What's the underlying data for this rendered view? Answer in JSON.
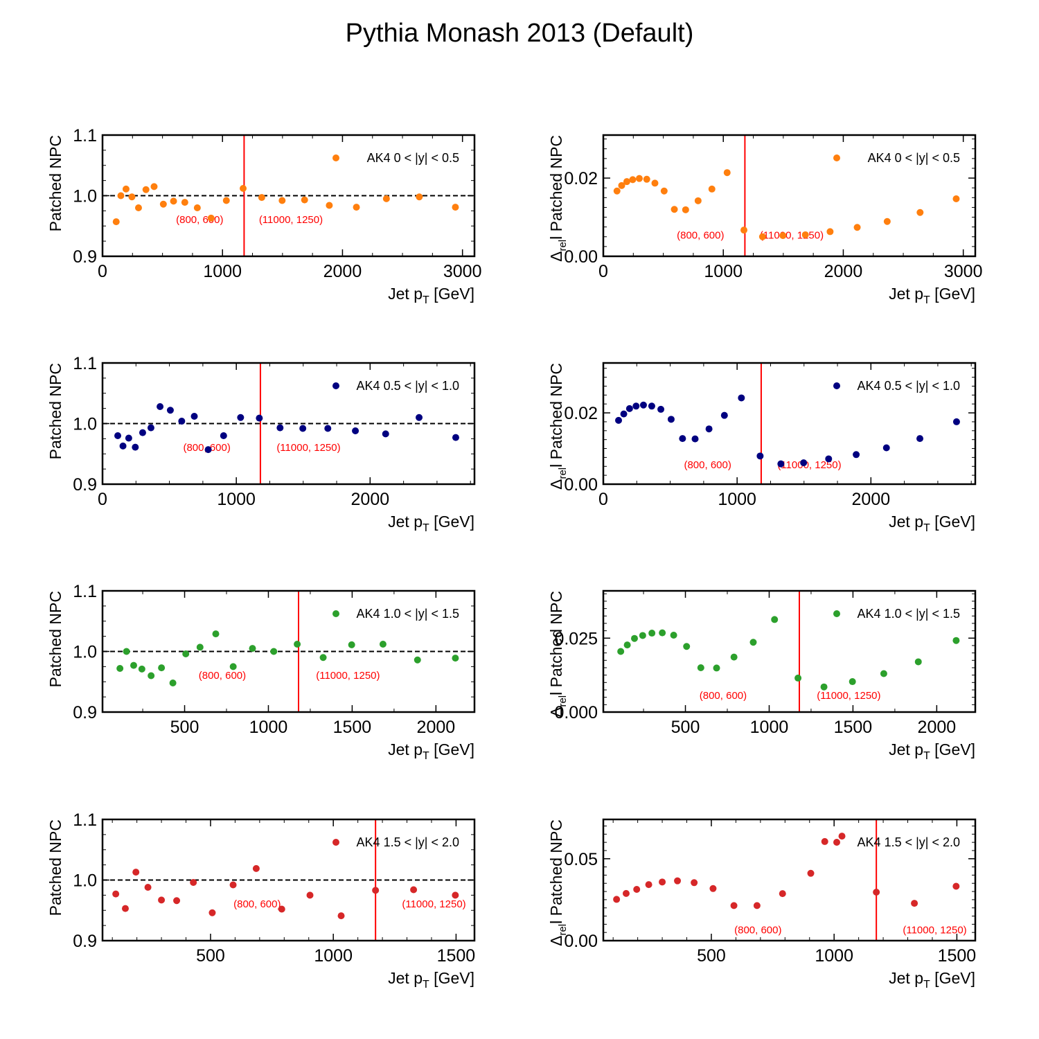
{
  "figure": {
    "title": "Pythia Monash 2013 (Default)"
  },
  "colors": {
    "orange": "#ff7f0e",
    "navy": "#000080",
    "green": "#2ca02c",
    "red": "#d62728",
    "vline": "#ff0000",
    "annot": "#ff0000"
  },
  "chart_data": [
    {
      "type": "scatter",
      "panel": "row1-left",
      "ylabel": "Patched NPC",
      "xlabel": "Jet p_T [GeV]",
      "legend": "AK4 0 < |y| < 0.5",
      "legend_loc": "top-right",
      "color": "orange",
      "xlim": [
        0,
        3100
      ],
      "ylim": [
        0.9,
        1.1
      ],
      "xticks": [
        0,
        1000,
        2000,
        3000
      ],
      "yticks": [
        0.9,
        1.0,
        1.1
      ],
      "ytick_labels": [
        "0.9",
        "1.0",
        "1.1"
      ],
      "hline": 1.0,
      "vline": 1180,
      "annotations": [
        {
          "text": "(800, 600)",
          "x": 810,
          "y": 0.955
        },
        {
          "text": "(11000, 1250)",
          "x": 1570,
          "y": 0.955
        }
      ],
      "x": [
        114,
        153,
        196,
        245,
        300,
        362,
        430,
        507,
        592,
        686,
        790,
        905,
        1032,
        1172,
        1327,
        1497,
        1684,
        1890,
        2116,
        2366,
        2640,
        2941
      ],
      "y": [
        0.957,
        1.0,
        1.011,
        0.998,
        0.98,
        1.01,
        1.015,
        0.986,
        0.991,
        0.989,
        0.98,
        0.963,
        0.992,
        1.012,
        0.997,
        0.992,
        0.993,
        0.984,
        0.981,
        0.995,
        0.998,
        0.981
      ]
    },
    {
      "type": "scatter",
      "panel": "row1-right",
      "ylabel": "Δrel Patched NPC",
      "xlabel": "Jet p_T [GeV]",
      "legend": "AK4 0 < |y| < 0.5",
      "legend_loc": "top-right",
      "color": "orange",
      "xlim": [
        0,
        3100
      ],
      "ylim": [
        0,
        0.031
      ],
      "xticks": [
        0,
        1000,
        2000,
        3000
      ],
      "yticks": [
        0.0,
        0.02
      ],
      "ytick_labels": [
        "0.00",
        "0.02"
      ],
      "vline": 1180,
      "annotations": [
        {
          "text": "(800, 600)",
          "x": 810,
          "y": 0.0045
        },
        {
          "text": "(11000, 1250)",
          "x": 1570,
          "y": 0.0045
        }
      ],
      "x": [
        114,
        153,
        196,
        245,
        300,
        362,
        430,
        507,
        592,
        686,
        790,
        905,
        1032,
        1172,
        1327,
        1497,
        1684,
        1890,
        2116,
        2366,
        2640,
        2941
      ],
      "y": [
        0.0167,
        0.0181,
        0.0191,
        0.0196,
        0.0199,
        0.0197,
        0.0187,
        0.0167,
        0.012,
        0.0119,
        0.0142,
        0.0172,
        0.0214,
        0.0067,
        0.005,
        0.0053,
        0.0055,
        0.0063,
        0.0074,
        0.0089,
        0.0112,
        0.0147
      ]
    },
    {
      "type": "scatter",
      "panel": "row2-left",
      "ylabel": "Patched NPC",
      "xlabel": "Jet p_T [GeV]",
      "legend": "AK4 0.5 < |y| < 1.0",
      "legend_loc": "top-right",
      "color": "navy",
      "xlim": [
        0,
        2780
      ],
      "ylim": [
        0.9,
        1.1
      ],
      "xticks": [
        0,
        1000,
        2000
      ],
      "yticks": [
        0.9,
        1.0,
        1.1
      ],
      "ytick_labels": [
        "0.9",
        "1.0",
        "1.1"
      ],
      "hline": 1.0,
      "vline": 1180,
      "annotations": [
        {
          "text": "(800, 600)",
          "x": 780,
          "y": 0.955
        },
        {
          "text": "(11000, 1250)",
          "x": 1540,
          "y": 0.955
        }
      ],
      "x": [
        114,
        153,
        196,
        245,
        300,
        362,
        430,
        507,
        592,
        686,
        790,
        905,
        1032,
        1172,
        1327,
        1497,
        1684,
        1890,
        2116,
        2366,
        2640
      ],
      "y": [
        0.98,
        0.963,
        0.976,
        0.961,
        0.985,
        0.993,
        1.028,
        1.022,
        1.004,
        1.012,
        0.957,
        0.98,
        1.01,
        1.009,
        0.993,
        0.992,
        0.992,
        0.988,
        0.983,
        1.01,
        0.977
      ]
    },
    {
      "type": "scatter",
      "panel": "row2-right",
      "ylabel": "Δrel Patched NPC",
      "xlabel": "Jet p_T [GeV]",
      "legend": "AK4 0.5 < |y| < 1.0",
      "legend_loc": "top-right",
      "color": "navy",
      "xlim": [
        0,
        2780
      ],
      "ylim": [
        0,
        0.034
      ],
      "xticks": [
        0,
        1000,
        2000
      ],
      "yticks": [
        0.0,
        0.02
      ],
      "ytick_labels": [
        "0.00",
        "0.02"
      ],
      "vline": 1180,
      "annotations": [
        {
          "text": "(800, 600)",
          "x": 780,
          "y": 0.0045
        },
        {
          "text": "(11000, 1250)",
          "x": 1540,
          "y": 0.0045
        }
      ],
      "x": [
        114,
        153,
        196,
        245,
        300,
        362,
        430,
        507,
        592,
        686,
        790,
        905,
        1032,
        1172,
        1327,
        1497,
        1684,
        1890,
        2116,
        2366,
        2640
      ],
      "y": [
        0.0179,
        0.0197,
        0.0212,
        0.0219,
        0.0222,
        0.0219,
        0.021,
        0.0182,
        0.0128,
        0.0127,
        0.0155,
        0.0193,
        0.0242,
        0.0079,
        0.0057,
        0.006,
        0.0071,
        0.0083,
        0.0102,
        0.0128,
        0.0175
      ]
    },
    {
      "type": "scatter",
      "panel": "row3-left",
      "ylabel": "Patched NPC",
      "xlabel": "Jet p_T [GeV]",
      "legend": "AK4 1.0 < |y| < 1.5",
      "legend_loc": "top-right",
      "color": "green",
      "xlim": [
        10,
        2230
      ],
      "ylim": [
        0.9,
        1.1
      ],
      "xticks": [
        500,
        1000,
        1500,
        2000
      ],
      "yticks": [
        0.9,
        1.0,
        1.1
      ],
      "ytick_labels": [
        "0.9",
        "1.0",
        "1.1"
      ],
      "hline": 1.0,
      "vline": 1180,
      "annotations": [
        {
          "text": "(800, 600)",
          "x": 725,
          "y": 0.955
        },
        {
          "text": "(11000, 1250)",
          "x": 1475,
          "y": 0.955
        }
      ],
      "x": [
        114,
        153,
        196,
        245,
        300,
        362,
        430,
        507,
        592,
        686,
        790,
        905,
        1032,
        1172,
        1327,
        1497,
        1684,
        1890,
        2116
      ],
      "y": [
        0.972,
        1.0,
        0.977,
        0.971,
        0.96,
        0.973,
        0.948,
        0.996,
        1.007,
        1.029,
        0.975,
        1.005,
        1.0,
        1.012,
        0.99,
        1.011,
        1.012,
        0.986,
        0.989
      ]
    },
    {
      "type": "scatter",
      "panel": "row3-right",
      "ylabel": "Δrel Patched NPC",
      "xlabel": "Jet p_T [GeV]",
      "legend": "AK4 1.0 < |y| < 1.5",
      "legend_loc": "top-right",
      "color": "green",
      "xlim": [
        10,
        2230
      ],
      "ylim": [
        0,
        0.041
      ],
      "xticks": [
        500,
        1000,
        1500,
        2000
      ],
      "yticks": [
        0.0,
        0.025
      ],
      "ytick_labels": [
        "0.000",
        "0.025"
      ],
      "vline": 1180,
      "annotations": [
        {
          "text": "(800, 600)",
          "x": 725,
          "y": 0.0045
        },
        {
          "text": "(11000, 1250)",
          "x": 1475,
          "y": 0.0045
        }
      ],
      "x": [
        114,
        153,
        196,
        245,
        300,
        362,
        430,
        507,
        592,
        686,
        790,
        905,
        1032,
        1172,
        1327,
        1497,
        1684,
        1890,
        2116
      ],
      "y": [
        0.0205,
        0.0227,
        0.0249,
        0.0259,
        0.0267,
        0.0268,
        0.026,
        0.0222,
        0.015,
        0.0149,
        0.0186,
        0.0236,
        0.0313,
        0.0115,
        0.0085,
        0.0103,
        0.013,
        0.017,
        0.0242
      ]
    },
    {
      "type": "scatter",
      "panel": "row4-left",
      "ylabel": "Patched NPC",
      "xlabel": "Jet p_T [GeV]",
      "legend": "AK4 1.5 < |y| < 2.0",
      "legend_loc": "top-right",
      "color": "red",
      "xlim": [
        60,
        1575
      ],
      "ylim": [
        0.9,
        1.1
      ],
      "xticks": [
        500,
        1000,
        1500
      ],
      "yticks": [
        0.9,
        1.0,
        1.1
      ],
      "ytick_labels": [
        "0.9",
        "1.0",
        "1.1"
      ],
      "hline": 1.0,
      "vline": 1172,
      "annotations": [
        {
          "text": "(800, 600)",
          "x": 690,
          "y": 0.955
        },
        {
          "text": "(11000, 1250)",
          "x": 1410,
          "y": 0.955
        }
      ],
      "x": [
        114,
        153,
        196,
        245,
        300,
        362,
        430,
        507,
        592,
        686,
        790,
        905,
        1032,
        1172,
        1327,
        1497
      ],
      "y": [
        0.977,
        0.953,
        1.013,
        0.988,
        0.967,
        0.966,
        0.996,
        0.946,
        0.992,
        1.019,
        0.952,
        0.975,
        0.941,
        0.983,
        0.984,
        0.975
      ]
    },
    {
      "type": "scatter",
      "panel": "row4-right",
      "ylabel": "Δrel Patched NPC",
      "xlabel": "Jet p_T [GeV]",
      "legend": "AK4 1.5 < |y| < 2.0",
      "legend_loc": "top-right",
      "color": "red",
      "xlim": [
        60,
        1575
      ],
      "ylim": [
        0,
        0.074
      ],
      "xticks": [
        500,
        1000,
        1500
      ],
      "yticks": [
        0.0,
        0.05
      ],
      "ytick_labels": [
        "0.00",
        "0.05"
      ],
      "vline": 1172,
      "annotations": [
        {
          "text": "(800, 600)",
          "x": 690,
          "y": 0.0045
        },
        {
          "text": "(11000, 1250)",
          "x": 1410,
          "y": 0.0045
        }
      ],
      "x": [
        114,
        153,
        196,
        245,
        300,
        362,
        430,
        507,
        592,
        686,
        790,
        905,
        962,
        1032,
        1172,
        1327,
        1497
      ],
      "y": [
        0.0252,
        0.0288,
        0.0313,
        0.0342,
        0.0358,
        0.0365,
        0.0354,
        0.0318,
        0.0214,
        0.0214,
        0.0287,
        0.0411,
        0.0605,
        0.0638,
        0.0296,
        0.0228,
        0.0332
      ]
    }
  ]
}
